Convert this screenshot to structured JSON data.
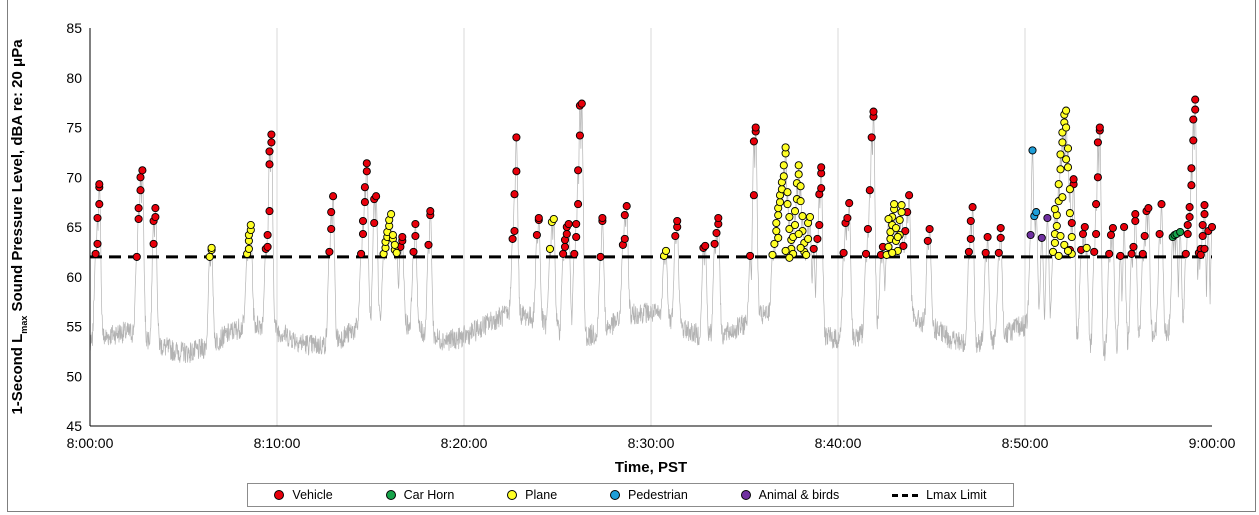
{
  "chart_data": {
    "type": "scatter",
    "title": "",
    "xlabel": "Time, PST",
    "ylabel_parts": [
      "1-Second L",
      "max",
      " Sound Pressure Level, dBA re: 20 μPa"
    ],
    "x_ticks": [
      "8:00:00",
      "8:10:00",
      "8:20:00",
      "8:30:00",
      "8:40:00",
      "8:50:00",
      "9:00:00"
    ],
    "xlim_minutes": [
      0,
      60
    ],
    "ylim": [
      45,
      85
    ],
    "y_ticks": [
      "45",
      "50",
      "55",
      "60",
      "65",
      "70",
      "75",
      "80",
      "85"
    ],
    "grid": "vertical",
    "limit_line": {
      "name": "Lmax Limit",
      "value": 62
    },
    "legend_position": "bottom",
    "colors": {
      "Vehicle": "#e8000b",
      "Car Horn": "#16a34a",
      "Plane": "#ffff26",
      "Pedestrian": "#1f9ed8",
      "Animal & birds": "#7030a0",
      "background_trace": "#b3b3b3"
    },
    "series": [
      {
        "name": "Vehicle",
        "points": [
          [
            0.3,
            62.3
          ],
          [
            0.4,
            63.3
          ],
          [
            0.4,
            65.9
          ],
          [
            0.5,
            67.3
          ],
          [
            0.5,
            69.0
          ],
          [
            0.5,
            69.3
          ],
          [
            2.5,
            62.0
          ],
          [
            2.6,
            65.8
          ],
          [
            2.6,
            66.9
          ],
          [
            2.7,
            68.7
          ],
          [
            2.7,
            70.0
          ],
          [
            2.8,
            70.7
          ],
          [
            3.4,
            63.3
          ],
          [
            3.4,
            65.6
          ],
          [
            3.5,
            66.0
          ],
          [
            3.5,
            66.9
          ],
          [
            9.4,
            62.8
          ],
          [
            9.5,
            63.0
          ],
          [
            9.5,
            64.2
          ],
          [
            9.6,
            66.6
          ],
          [
            9.6,
            71.3
          ],
          [
            9.6,
            72.6
          ],
          [
            9.7,
            73.5
          ],
          [
            9.7,
            74.3
          ],
          [
            12.8,
            62.5
          ],
          [
            12.9,
            64.8
          ],
          [
            12.9,
            66.5
          ],
          [
            13.0,
            68.1
          ],
          [
            14.5,
            62.3
          ],
          [
            14.6,
            64.3
          ],
          [
            14.6,
            65.6
          ],
          [
            14.7,
            67.5
          ],
          [
            14.7,
            69.0
          ],
          [
            14.8,
            70.6
          ],
          [
            14.8,
            71.4
          ],
          [
            15.2,
            65.4
          ],
          [
            15.2,
            67.8
          ],
          [
            15.3,
            68.1
          ],
          [
            16.6,
            63.0
          ],
          [
            16.7,
            63.6
          ],
          [
            16.7,
            64.0
          ],
          [
            17.3,
            62.5
          ],
          [
            17.4,
            64.1
          ],
          [
            17.4,
            65.3
          ],
          [
            18.1,
            63.2
          ],
          [
            18.2,
            66.2
          ],
          [
            18.2,
            66.6
          ],
          [
            22.6,
            63.8
          ],
          [
            22.7,
            64.6
          ],
          [
            22.7,
            68.3
          ],
          [
            22.8,
            70.6
          ],
          [
            22.8,
            74.0
          ],
          [
            23.9,
            64.2
          ],
          [
            24.0,
            65.7
          ],
          [
            24.0,
            65.9
          ],
          [
            25.3,
            62.3
          ],
          [
            25.4,
            63.0
          ],
          [
            25.4,
            63.7
          ],
          [
            25.5,
            64.3
          ],
          [
            25.5,
            65.0
          ],
          [
            25.6,
            65.3
          ],
          [
            25.9,
            62.3
          ],
          [
            26.0,
            64.0
          ],
          [
            26.0,
            65.3
          ],
          [
            26.1,
            67.3
          ],
          [
            26.1,
            70.7
          ],
          [
            26.2,
            74.2
          ],
          [
            26.2,
            77.2
          ],
          [
            26.3,
            77.4
          ],
          [
            27.3,
            62.0
          ],
          [
            27.4,
            65.6
          ],
          [
            27.4,
            65.9
          ],
          [
            28.5,
            63.2
          ],
          [
            28.6,
            63.8
          ],
          [
            28.6,
            66.2
          ],
          [
            28.7,
            67.1
          ],
          [
            31.3,
            64.1
          ],
          [
            31.4,
            65.0
          ],
          [
            31.4,
            65.6
          ],
          [
            32.8,
            62.9
          ],
          [
            32.9,
            63.1
          ],
          [
            33.4,
            63.3
          ],
          [
            33.5,
            64.4
          ],
          [
            33.6,
            65.3
          ],
          [
            33.6,
            65.9
          ],
          [
            35.3,
            62.1
          ],
          [
            35.5,
            68.2
          ],
          [
            35.5,
            73.6
          ],
          [
            35.6,
            74.6
          ],
          [
            35.6,
            75.0
          ],
          [
            38.7,
            62.8
          ],
          [
            38.9,
            63.8
          ],
          [
            39.0,
            65.2
          ],
          [
            39.0,
            68.3
          ],
          [
            39.1,
            68.9
          ],
          [
            39.1,
            70.4
          ],
          [
            39.1,
            71.0
          ],
          [
            40.3,
            62.4
          ],
          [
            40.4,
            65.4
          ],
          [
            40.5,
            65.9
          ],
          [
            40.6,
            67.4
          ],
          [
            41.5,
            62.3
          ],
          [
            41.6,
            64.8
          ],
          [
            41.7,
            68.7
          ],
          [
            41.8,
            74.0
          ],
          [
            41.9,
            76.1
          ],
          [
            41.9,
            76.6
          ],
          [
            42.3,
            62.2
          ],
          [
            42.4,
            63.0
          ],
          [
            43.5,
            63.1
          ],
          [
            43.6,
            64.6
          ],
          [
            43.7,
            66.5
          ],
          [
            43.8,
            68.2
          ],
          [
            44.8,
            63.6
          ],
          [
            44.9,
            64.8
          ],
          [
            47.0,
            62.5
          ],
          [
            47.1,
            63.8
          ],
          [
            47.1,
            65.6
          ],
          [
            47.2,
            67.0
          ],
          [
            47.9,
            62.4
          ],
          [
            48.0,
            64.0
          ],
          [
            48.6,
            62.4
          ],
          [
            48.7,
            63.9
          ],
          [
            48.7,
            64.9
          ],
          [
            52.4,
            62.7
          ],
          [
            52.5,
            65.4
          ],
          [
            52.6,
            69.3
          ],
          [
            52.6,
            69.8
          ],
          [
            53.0,
            62.7
          ],
          [
            53.1,
            64.3
          ],
          [
            53.2,
            65.0
          ],
          [
            53.7,
            62.5
          ],
          [
            53.8,
            64.3
          ],
          [
            53.8,
            67.3
          ],
          [
            53.9,
            70.0
          ],
          [
            53.9,
            73.5
          ],
          [
            54.0,
            74.7
          ],
          [
            54.0,
            75.0
          ],
          [
            54.5,
            62.3
          ],
          [
            54.6,
            64.2
          ],
          [
            54.7,
            64.9
          ],
          [
            55.1,
            62.1
          ],
          [
            55.3,
            65.0
          ],
          [
            55.7,
            62.3
          ],
          [
            55.8,
            63.0
          ],
          [
            55.9,
            65.6
          ],
          [
            55.9,
            66.3
          ],
          [
            56.3,
            62.3
          ],
          [
            56.4,
            64.1
          ],
          [
            56.5,
            66.6
          ],
          [
            56.6,
            66.9
          ],
          [
            57.2,
            64.3
          ],
          [
            57.3,
            67.3
          ],
          [
            58.6,
            62.3
          ],
          [
            58.7,
            64.3
          ],
          [
            58.7,
            65.2
          ],
          [
            58.8,
            66.0
          ],
          [
            58.8,
            67.0
          ],
          [
            58.9,
            69.2
          ],
          [
            58.9,
            70.9
          ],
          [
            59.0,
            73.7
          ],
          [
            59.0,
            75.8
          ],
          [
            59.1,
            76.8
          ],
          [
            59.1,
            77.8
          ],
          [
            59.3,
            62.4
          ],
          [
            59.4,
            62.8
          ],
          [
            59.5,
            64.1
          ],
          [
            59.5,
            65.2
          ],
          [
            59.6,
            66.3
          ],
          [
            59.6,
            67.2
          ],
          [
            59.8,
            64.6
          ],
          [
            60.0,
            65.0
          ],
          [
            59.4,
            62.2
          ],
          [
            59.6,
            62.8
          ]
        ]
      },
      {
        "name": "Car Horn",
        "points": [
          [
            57.9,
            64.0
          ],
          [
            58.0,
            64.2
          ],
          [
            58.1,
            64.3
          ],
          [
            58.3,
            64.5
          ]
        ]
      },
      {
        "name": "Plane",
        "points": [
          [
            6.4,
            62.0
          ],
          [
            6.5,
            62.7
          ],
          [
            6.5,
            62.9
          ],
          [
            8.4,
            62.3
          ],
          [
            8.5,
            62.8
          ],
          [
            8.5,
            63.6
          ],
          [
            8.5,
            64.2
          ],
          [
            8.6,
            64.7
          ],
          [
            8.6,
            65.2
          ],
          [
            15.7,
            62.3
          ],
          [
            15.8,
            62.9
          ],
          [
            15.8,
            63.5
          ],
          [
            15.9,
            64.0
          ],
          [
            15.9,
            64.5
          ],
          [
            16.0,
            65.1
          ],
          [
            16.0,
            65.7
          ],
          [
            16.1,
            66.3
          ],
          [
            16.2,
            63.8
          ],
          [
            16.2,
            64.2
          ],
          [
            16.3,
            62.7
          ],
          [
            16.3,
            63.2
          ],
          [
            16.4,
            62.4
          ],
          [
            24.6,
            62.8
          ],
          [
            24.7,
            65.5
          ],
          [
            24.8,
            65.8
          ],
          [
            30.7,
            62.1
          ],
          [
            30.8,
            62.6
          ],
          [
            36.5,
            62.2
          ],
          [
            36.6,
            63.3
          ],
          [
            36.7,
            64.6
          ],
          [
            36.7,
            65.4
          ],
          [
            36.8,
            66.2
          ],
          [
            36.8,
            66.9
          ],
          [
            36.9,
            67.5
          ],
          [
            36.9,
            68.2
          ],
          [
            37.0,
            68.8
          ],
          [
            37.0,
            69.5
          ],
          [
            37.1,
            70.1
          ],
          [
            37.1,
            71.2
          ],
          [
            37.2,
            72.4
          ],
          [
            37.2,
            73.0
          ],
          [
            37.3,
            68.5
          ],
          [
            37.3,
            67.3
          ],
          [
            37.4,
            66.0
          ],
          [
            37.4,
            64.8
          ],
          [
            37.5,
            63.7
          ],
          [
            37.5,
            62.8
          ],
          [
            37.6,
            62.3
          ],
          [
            37.7,
            65.2
          ],
          [
            37.7,
            66.6
          ],
          [
            37.8,
            67.8
          ],
          [
            37.8,
            69.4
          ],
          [
            37.9,
            70.3
          ],
          [
            37.9,
            71.2
          ],
          [
            38.0,
            69.1
          ],
          [
            38.0,
            67.6
          ],
          [
            38.1,
            66.1
          ],
          [
            38.1,
            64.6
          ],
          [
            38.2,
            63.4
          ],
          [
            38.2,
            62.5
          ],
          [
            38.3,
            62.2
          ],
          [
            38.4,
            63.8
          ],
          [
            38.4,
            65.4
          ],
          [
            38.5,
            66.0
          ],
          [
            37.6,
            64.0
          ],
          [
            37.9,
            64.3
          ],
          [
            38.0,
            62.9
          ],
          [
            36.8,
            63.9
          ],
          [
            37.2,
            62.6
          ],
          [
            37.4,
            61.9
          ],
          [
            42.6,
            62.2
          ],
          [
            42.7,
            63.0
          ],
          [
            42.8,
            63.8
          ],
          [
            42.8,
            64.5
          ],
          [
            42.9,
            65.2
          ],
          [
            42.9,
            66.0
          ],
          [
            43.0,
            66.8
          ],
          [
            43.0,
            67.3
          ],
          [
            43.1,
            64.9
          ],
          [
            43.1,
            63.6
          ],
          [
            43.2,
            62.6
          ],
          [
            43.3,
            64.2
          ],
          [
            43.3,
            65.7
          ],
          [
            43.4,
            66.5
          ],
          [
            43.4,
            67.2
          ],
          [
            42.7,
            65.8
          ],
          [
            42.9,
            62.4
          ],
          [
            43.2,
            64.0
          ],
          [
            51.5,
            62.5
          ],
          [
            51.6,
            63.4
          ],
          [
            51.6,
            64.3
          ],
          [
            51.7,
            65.1
          ],
          [
            51.7,
            66.2
          ],
          [
            51.8,
            67.6
          ],
          [
            51.8,
            69.3
          ],
          [
            51.9,
            70.8
          ],
          [
            51.9,
            72.3
          ],
          [
            52.0,
            73.5
          ],
          [
            52.0,
            74.5
          ],
          [
            52.1,
            75.5
          ],
          [
            52.1,
            76.3
          ],
          [
            52.2,
            76.7
          ],
          [
            52.2,
            75.0
          ],
          [
            52.3,
            72.9
          ],
          [
            52.3,
            71.0
          ],
          [
            52.4,
            68.8
          ],
          [
            52.4,
            66.4
          ],
          [
            52.5,
            64.0
          ],
          [
            52.5,
            62.3
          ],
          [
            51.9,
            64.1
          ],
          [
            52.1,
            63.2
          ],
          [
            52.3,
            62.6
          ],
          [
            51.8,
            62.1
          ],
          [
            52.0,
            68.0
          ],
          [
            52.2,
            71.8
          ],
          [
            51.6,
            66.8
          ],
          [
            53.3,
            62.9
          ]
        ]
      },
      {
        "name": "Pedestrian",
        "points": [
          [
            50.4,
            72.7
          ],
          [
            50.5,
            66.1
          ],
          [
            50.6,
            66.5
          ]
        ]
      },
      {
        "name": "Animal & birds",
        "points": [
          [
            50.3,
            64.2
          ],
          [
            50.9,
            63.9
          ],
          [
            51.2,
            65.9
          ]
        ]
      }
    ]
  },
  "legend": [
    {
      "label": "Vehicle",
      "swatch": "#e8000b",
      "kind": "dot"
    },
    {
      "label": "Car Horn",
      "swatch": "#16a34a",
      "kind": "dot"
    },
    {
      "label": "Plane",
      "swatch": "#ffff26",
      "kind": "dot"
    },
    {
      "label": "Pedestrian",
      "swatch": "#1f9ed8",
      "kind": "dot"
    },
    {
      "label": "Animal & birds",
      "swatch": "#7030a0",
      "kind": "dot"
    },
    {
      "label": "Lmax Limit",
      "swatch": "#000000",
      "kind": "dash"
    }
  ]
}
